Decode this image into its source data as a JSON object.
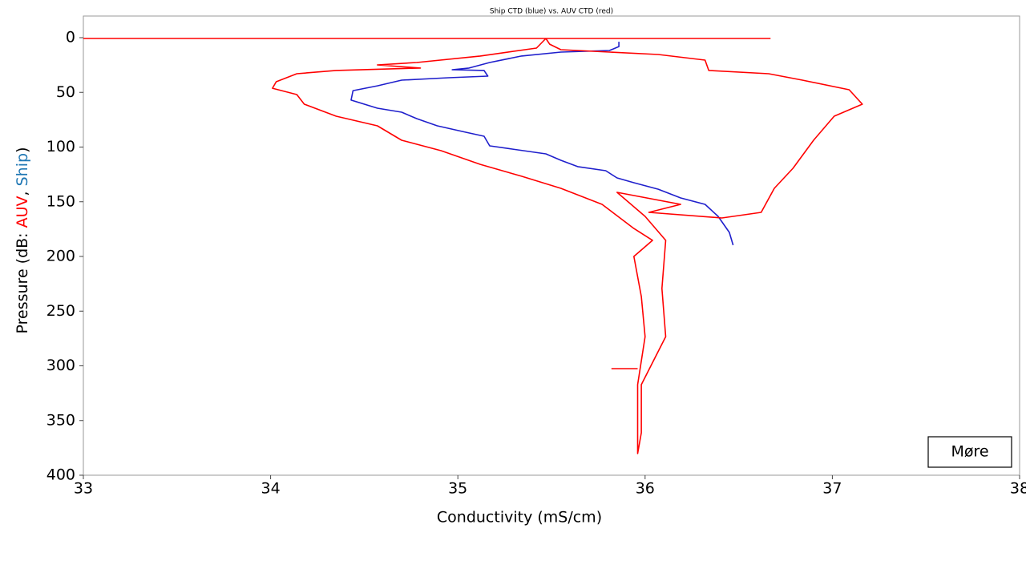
{
  "chart_data": {
    "type": "line",
    "title": "Ship CTD (blue) vs. AUV CTD (red)",
    "xlabel": "Conductivity (mS/cm)",
    "ylabel": [
      {
        "text": "Pressure (dB: ",
        "color": "#000000"
      },
      {
        "text": "AUV",
        "color": "#ff0000"
      },
      {
        "text": ", ",
        "color": "#000000"
      },
      {
        "text": "Ship",
        "color": "#1f77b4"
      },
      {
        "text": ")",
        "color": "#000000"
      }
    ],
    "annotation": "Møre",
    "xlim": [
      33,
      38
    ],
    "xticks": [
      33,
      34,
      35,
      36,
      37,
      38
    ],
    "ylim": [
      0,
      400
    ],
    "yticks": [
      0,
      50,
      100,
      150,
      200,
      250,
      300,
      350,
      400
    ],
    "y_inverted": true,
    "series": [
      {
        "name": "Ship",
        "color": "#1f1fcc",
        "x": [
          35.86,
          35.86,
          35.81,
          35.55,
          35.34,
          35.17,
          35.06,
          34.97,
          35.14,
          35.16,
          34.95,
          34.7,
          34.57,
          34.44,
          34.43,
          34.57,
          34.7,
          34.78,
          34.89,
          35.04,
          35.14,
          35.17,
          35.29,
          35.47,
          35.55,
          35.64,
          35.79,
          35.85,
          35.94,
          36.07,
          36.19,
          36.32,
          36.39,
          36.45,
          36.47
        ],
        "values": [
          3.7,
          8.1,
          11.7,
          13.2,
          16.8,
          22.7,
          27.8,
          29.3,
          30.0,
          35.2,
          36.6,
          38.8,
          44.0,
          48.4,
          57.1,
          64.5,
          68.1,
          74.0,
          80.6,
          86.4,
          90.1,
          98.9,
          101.8,
          106.2,
          112.1,
          117.9,
          121.6,
          128.2,
          132.6,
          138.5,
          146.5,
          152.4,
          163.4,
          178.0,
          189.7
        ]
      },
      {
        "name": "AUV",
        "color": "#ff0000",
        "x": [
          33.0,
          36.67,
          null,
          35.47,
          35.42,
          35.12,
          34.78,
          34.57,
          34.8,
          34.35,
          34.14,
          34.03,
          34.01,
          34.14,
          34.18,
          34.35,
          34.57,
          34.7,
          34.91,
          35.12,
          35.34,
          35.55,
          35.77,
          35.94,
          36.04,
          35.94,
          35.98,
          36.0,
          35.96,
          35.96,
          35.98,
          35.98,
          36.11,
          36.09,
          36.11,
          36.0,
          35.85,
          36.19,
          36.02,
          36.41,
          36.62,
          36.69,
          36.79,
          36.9,
          37.01,
          37.16,
          37.09,
          36.84,
          36.66,
          36.34,
          36.32,
          36.07,
          35.55,
          35.49,
          35.47,
          null,
          35.82,
          35.96
        ],
        "values": [
          0.7,
          0.7,
          null,
          0.7,
          9.5,
          16.8,
          22.7,
          24.9,
          27.8,
          30.0,
          33.0,
          40.3,
          46.2,
          52.0,
          60.8,
          71.8,
          80.6,
          93.8,
          103.3,
          115.8,
          126.7,
          137.7,
          152.4,
          174.4,
          185.3,
          200.0,
          236.6,
          273.3,
          317.2,
          380.2,
          361.2,
          317.2,
          273.3,
          229.3,
          185.3,
          163.4,
          141.4,
          152.4,
          159.7,
          164.8,
          159.7,
          137.7,
          119.4,
          93.8,
          71.8,
          60.8,
          47.6,
          38.8,
          33.0,
          30.0,
          20.5,
          15.4,
          11.0,
          5.9,
          0.7,
          null,
          302.6,
          302.6
        ]
      }
    ]
  }
}
